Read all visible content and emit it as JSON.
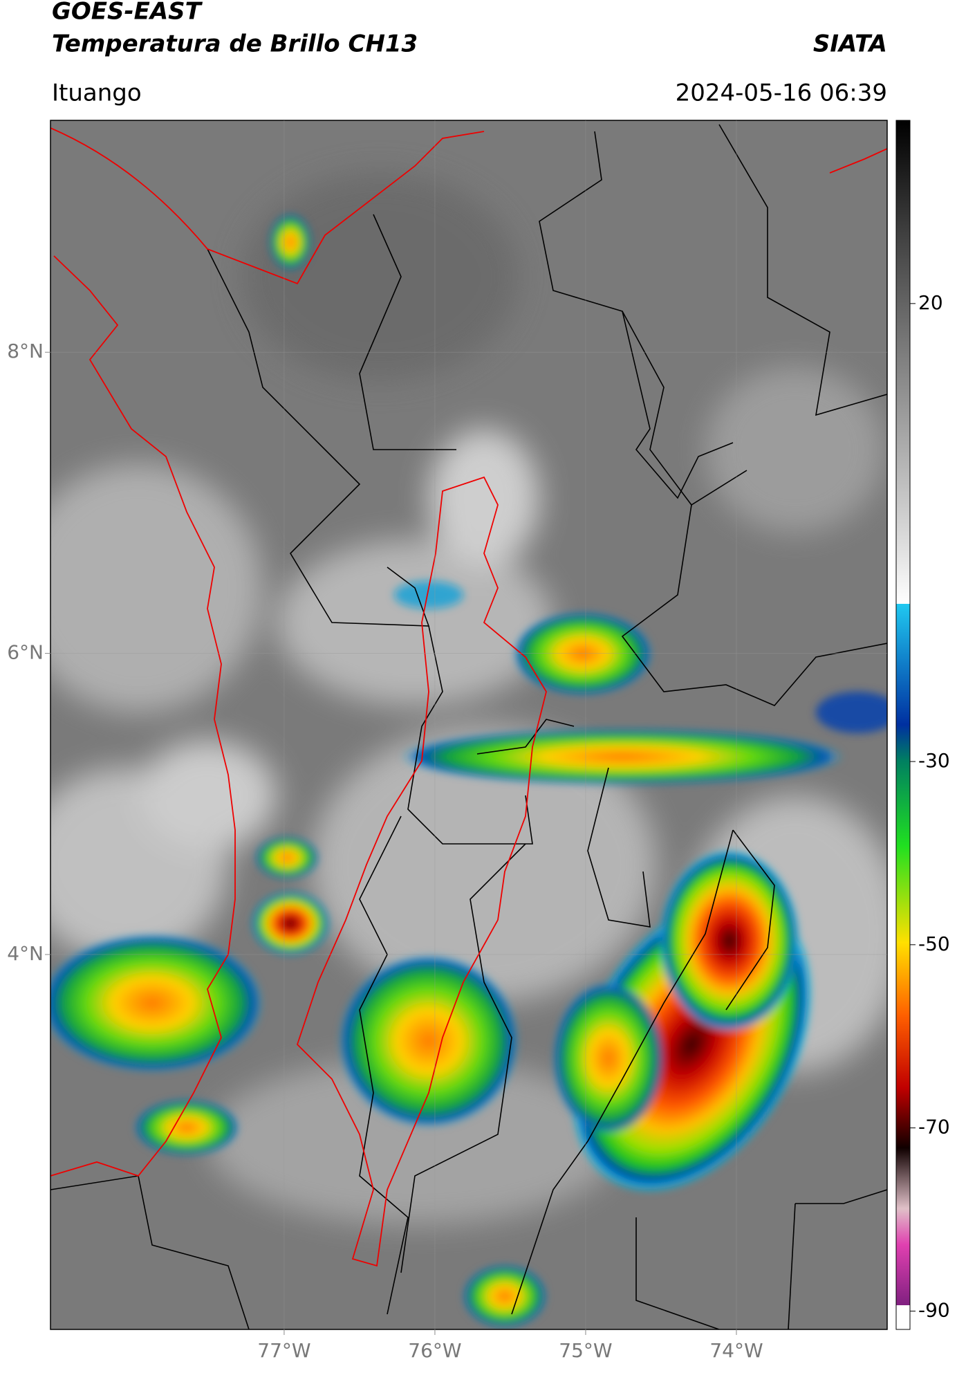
{
  "header": {
    "title": "GOES-EAST",
    "subtitle": "Temperatura de Brillo CH13",
    "source": "SIATA",
    "location": "Ituango",
    "timestamp": "2024-05-16 06:39"
  },
  "map": {
    "xlim": [
      -78.55,
      -73.0
    ],
    "ylim": [
      1.51,
      9.54
    ],
    "xticks": [
      {
        "value": -77,
        "label": "77°W"
      },
      {
        "value": -76,
        "label": "76°W"
      },
      {
        "value": -75,
        "label": "75°W"
      },
      {
        "value": -74,
        "label": "74°W"
      }
    ],
    "yticks": [
      {
        "value": 8,
        "label": "8°N"
      },
      {
        "value": 6,
        "label": "6°N"
      },
      {
        "value": 4,
        "label": "4°N"
      }
    ],
    "grid": true
  },
  "colorbar": {
    "lim": [
      40,
      -92
    ],
    "ticks": [
      20,
      -30,
      -50,
      -70,
      -90
    ]
  }
}
